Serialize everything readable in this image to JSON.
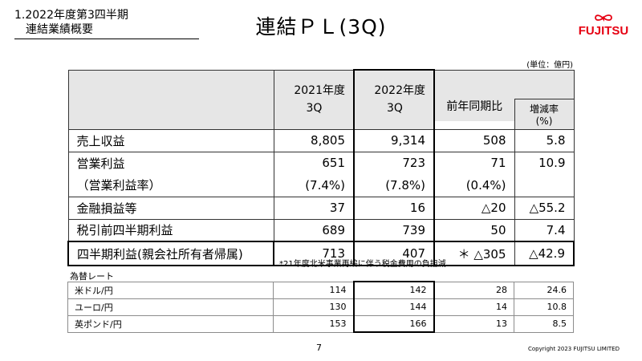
{
  "header": {
    "section_line1": "1.2022年度第3四半期",
    "section_line2": "連結業績概要",
    "title": "連結ＰＬ(3Q)",
    "logo_text": "FUJITSU",
    "brand_color": "#e60012"
  },
  "unit_note": "(単位：億円)",
  "pl_table": {
    "col_2021": [
      "2021年度",
      "3Q"
    ],
    "col_2022": [
      "2022年度",
      "3Q"
    ],
    "col_yoy": "前年同期比",
    "col_rate": "増減率(%)",
    "rows": {
      "revenue": {
        "label": "売上収益",
        "v2021": "8,805",
        "v2022": "9,314",
        "diff": "508",
        "rate": "5.8"
      },
      "op_income": {
        "label": "営業利益",
        "v2021": "651",
        "v2022": "723",
        "diff": "71",
        "rate": "10.9"
      },
      "op_margin": {
        "label": "（営業利益率）",
        "v2021": "(7.4%)",
        "v2022": "(7.8%)",
        "diff": "(0.4%)",
        "rate": ""
      },
      "financial": {
        "label": "金融損益等",
        "v2021": "37",
        "v2022": "16",
        "diff": "△20",
        "rate": "△55.2"
      },
      "pretax": {
        "label": "税引前四半期利益",
        "v2021": "689",
        "v2022": "739",
        "diff": "50",
        "rate": "7.4"
      },
      "net": {
        "label": "四半期利益(親会社所有者帰属)",
        "v2021": "713",
        "v2022": "407",
        "diff": "＊ △305",
        "rate": "△42.9"
      }
    }
  },
  "footnote": "*21年度北米事業再編に伴う税金費用の負担減",
  "fx_table": {
    "title": "為替レート",
    "rows": {
      "usd": {
        "label": "米ドル/円",
        "v2021": "114",
        "v2022": "142",
        "diff": "28",
        "rate": "24.6"
      },
      "eur": {
        "label": "ユーロ/円",
        "v2021": "130",
        "v2022": "144",
        "diff": "14",
        "rate": "10.8"
      },
      "gbp": {
        "label": "英ポンド/円",
        "v2021": "153",
        "v2022": "166",
        "diff": "13",
        "rate": "8.5"
      }
    }
  },
  "footer": {
    "page_number": "7",
    "copyright": "Copyright 2023 FUJITSU LIMITED"
  }
}
